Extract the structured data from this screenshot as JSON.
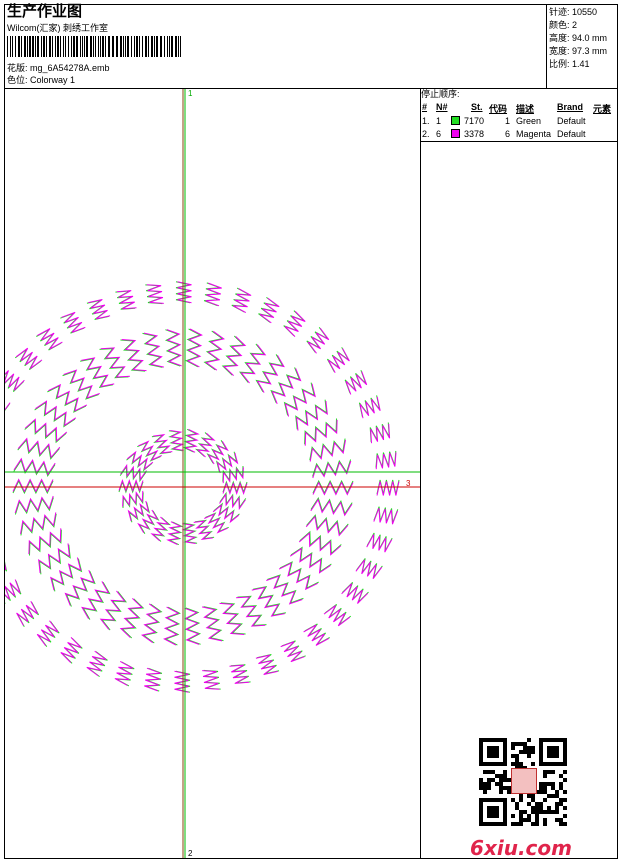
{
  "header": {
    "title": "生产作业图",
    "software": "Wilcom(汇家) 刺绣工作室",
    "design_file": "花版: mg_6A54278A.emb",
    "colorway": "色位: Colorway 1"
  },
  "stats": {
    "stitches": "针迹: 10550",
    "colors": "颜色: 2",
    "height": "高度: 94.0 mm",
    "width": "宽度: 97.3 mm",
    "ratio": "比例: 1.41"
  },
  "stop_sequence": {
    "title": "停止顺序:",
    "headers": [
      "#",
      "N#",
      "St.",
      "代码",
      "描述",
      "Brand",
      "元素"
    ],
    "rows": [
      {
        "index": "1.",
        "needle": "1",
        "stitches": "7170",
        "code": "1",
        "desc": "Green",
        "brand": "Default",
        "swatch": "#22dd22"
      },
      {
        "index": "2.",
        "needle": "6",
        "stitches": "3378",
        "code": "6",
        "desc": "Magenta",
        "brand": "Default",
        "swatch": "#ee00ee"
      }
    ]
  },
  "axis_labels": {
    "top": "1",
    "bottom": "2",
    "right": "3"
  },
  "watermark": "6xiu.com",
  "colors": {
    "green": "#22dd22",
    "magenta": "#ee00ee",
    "axis_red": "#cc0000",
    "axis_green": "#00bb00",
    "axis_brown": "#8b4513"
  }
}
